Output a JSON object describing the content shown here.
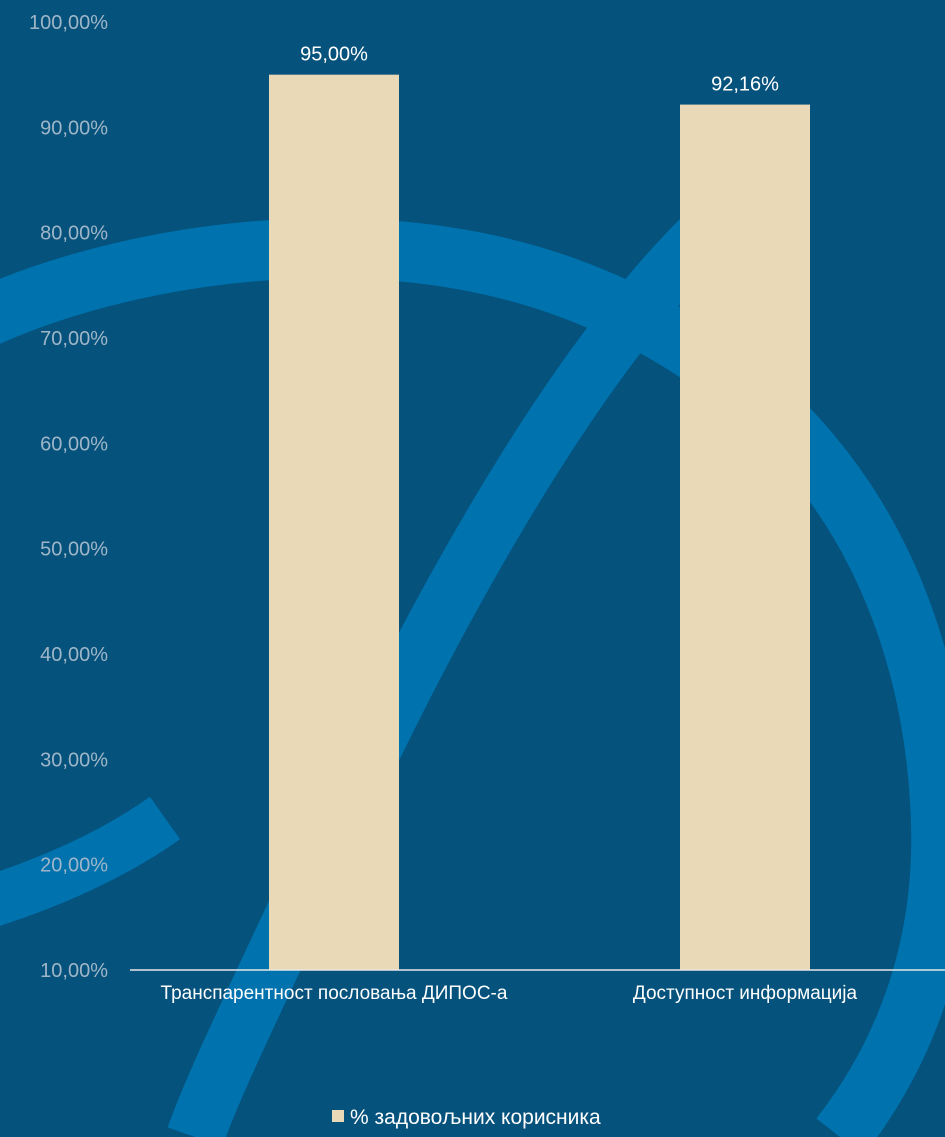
{
  "colors": {
    "background": "#05527c",
    "decor": "#0072ae",
    "bar": "#ead9b7",
    "tick_text": "#9fb6c9",
    "label_text": "#ffffff",
    "axis": "#e6e6e6"
  },
  "chart_data": {
    "type": "bar",
    "title": "",
    "xlabel": "",
    "ylabel": "",
    "ylim": [
      10,
      100
    ],
    "yticks": [
      "10,00%",
      "20,00%",
      "30,00%",
      "40,00%",
      "50,00%",
      "60,00%",
      "70,00%",
      "80,00%",
      "90,00%",
      "100,00%"
    ],
    "categories": [
      "Транспарентност пословања ДИПОС-а",
      "Доступност информација"
    ],
    "series": [
      {
        "name": "% задовољних корисника",
        "values": [
          95.0,
          92.16
        ],
        "labels": [
          "95,00%",
          "92,16%"
        ]
      }
    ],
    "grid": false,
    "legend_position": "bottom"
  }
}
